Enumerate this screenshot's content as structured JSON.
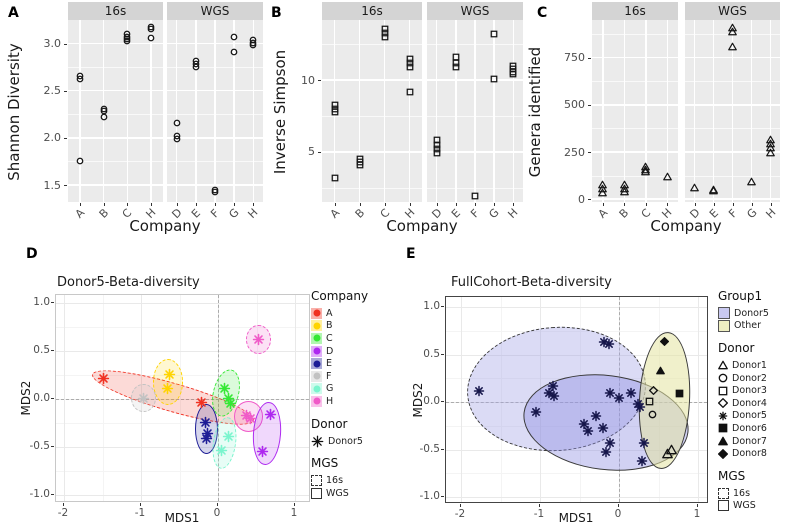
{
  "colors": {
    "company": {
      "A": "#F03122",
      "B": "#FFD400",
      "C": "#35E835",
      "D": "#AE29F0",
      "E": "#1D1D96",
      "F": "#C2C2C2",
      "G": "#7BF5CE",
      "H": "#F05BC8"
    },
    "donor5_point": "#16164B",
    "other_donor_point": "#111111",
    "group1": {
      "Donor5": "#C9C9F0",
      "Other": "#EFEFC2"
    },
    "facet_strip_bg": "#D4D4D4",
    "facet_panel_bg": "#EBEBEB",
    "e_ellipse_16s_fill": "rgba(160,160,230,0.38)",
    "e_ellipse_wgs_fill": "rgba(140,140,225,0.40)",
    "e_ellipse_other_fill": "rgba(228,228,160,0.55)"
  },
  "chart_data": [
    {
      "type": "scatter",
      "panel_label": "A",
      "ylabel": "Shannon Diversity",
      "xlabel": "Company",
      "marker": "circle-open",
      "yticks": [
        {
          "v": 1.5,
          "label": "1.5"
        },
        {
          "v": 2.0,
          "label": "2.0"
        },
        {
          "v": 2.5,
          "label": "2.5"
        },
        {
          "v": 3.0,
          "label": "3.0"
        }
      ],
      "ylim": [
        1.32,
        3.25
      ],
      "facets": [
        {
          "label": "16s",
          "categories": [
            "A",
            "B",
            "C",
            "H"
          ],
          "points": [
            [
              "A",
              2.66
            ],
            [
              "A",
              2.62
            ],
            [
              "A",
              1.76
            ],
            [
              "B",
              2.31
            ],
            [
              "B",
              2.28
            ],
            [
              "B",
              2.22
            ],
            [
              "C",
              3.1
            ],
            [
              "C",
              3.07
            ],
            [
              "C",
              3.05
            ],
            [
              "C",
              3.03
            ],
            [
              "H",
              3.18
            ],
            [
              "H",
              3.15
            ],
            [
              "H",
              3.06
            ]
          ]
        },
        {
          "label": "WGS",
          "categories": [
            "D",
            "E",
            "F",
            "G",
            "H"
          ],
          "points": [
            [
              "D",
              2.16
            ],
            [
              "D",
              2.02
            ],
            [
              "D",
              1.99
            ],
            [
              "E",
              2.81
            ],
            [
              "E",
              2.78
            ],
            [
              "E",
              2.75
            ],
            [
              "F",
              1.45
            ],
            [
              "F",
              1.43
            ],
            [
              "G",
              3.07
            ],
            [
              "G",
              2.91
            ],
            [
              "H",
              3.04
            ],
            [
              "H",
              3.01
            ],
            [
              "H",
              2.99
            ]
          ]
        }
      ]
    },
    {
      "type": "scatter",
      "panel_label": "B",
      "ylabel": "Inverse Simpson",
      "xlabel": "Company",
      "marker": "square-open",
      "yticks": [
        {
          "v": 5,
          "label": "5"
        },
        {
          "v": 10,
          "label": "10"
        }
      ],
      "ylim": [
        1.5,
        14.2
      ],
      "facets": [
        {
          "label": "16s",
          "categories": [
            "A",
            "B",
            "C",
            "H"
          ],
          "points": [
            [
              "A",
              8.3
            ],
            [
              "A",
              8.0
            ],
            [
              "A",
              7.8
            ],
            [
              "A",
              3.2
            ],
            [
              "B",
              4.5
            ],
            [
              "B",
              4.3
            ],
            [
              "B",
              4.1
            ],
            [
              "C",
              13.6
            ],
            [
              "C",
              13.3
            ],
            [
              "C",
              13.0
            ],
            [
              "H",
              11.5
            ],
            [
              "H",
              11.2
            ],
            [
              "H",
              10.9
            ],
            [
              "H",
              9.2
            ]
          ]
        },
        {
          "label": "WGS",
          "categories": [
            "D",
            "E",
            "F",
            "G",
            "H"
          ],
          "points": [
            [
              "D",
              5.8
            ],
            [
              "D",
              5.5
            ],
            [
              "D",
              5.2
            ],
            [
              "D",
              4.9
            ],
            [
              "E",
              11.6
            ],
            [
              "E",
              11.2
            ],
            [
              "E",
              10.9
            ],
            [
              "F",
              1.9
            ],
            [
              "G",
              13.2
            ],
            [
              "G",
              10.1
            ],
            [
              "H",
              11.0
            ],
            [
              "H",
              10.8
            ],
            [
              "H",
              10.55
            ],
            [
              "H",
              10.4
            ]
          ]
        }
      ]
    },
    {
      "type": "scatter",
      "panel_label": "C",
      "ylabel": "Genera identified",
      "xlabel": "Company",
      "marker": "triangle-open",
      "yticks": [
        {
          "v": 0,
          "label": "0"
        },
        {
          "v": 250,
          "label": "250"
        },
        {
          "v": 500,
          "label": "500"
        },
        {
          "v": 750,
          "label": "750"
        }
      ],
      "ylim": [
        -15,
        950
      ],
      "facets": [
        {
          "label": "16s",
          "categories": [
            "A",
            "B",
            "C",
            "H"
          ],
          "points": [
            [
              "A",
              80
            ],
            [
              "A",
              55
            ],
            [
              "A",
              35
            ],
            [
              "B",
              78
            ],
            [
              "B",
              55
            ],
            [
              "B",
              42
            ],
            [
              "C",
              175
            ],
            [
              "C",
              158
            ],
            [
              "C",
              147
            ],
            [
              "H",
              118
            ]
          ]
        },
        {
          "label": "WGS",
          "categories": [
            "D",
            "E",
            "F",
            "G",
            "H"
          ],
          "points": [
            [
              "D",
              60
            ],
            [
              "E",
              52
            ],
            [
              "E",
              45
            ],
            [
              "F",
              912
            ],
            [
              "F",
              888
            ],
            [
              "F",
              808
            ],
            [
              "G",
              95
            ],
            [
              "H",
              318
            ],
            [
              "H",
              295
            ],
            [
              "H",
              272
            ],
            [
              "H",
              250
            ]
          ]
        }
      ]
    },
    {
      "type": "scatter-mds",
      "panel_label": "D",
      "title": "Donor5-Beta-diversity",
      "xlabel": "MDS1",
      "ylabel": "MDS2",
      "xticks": [
        {
          "v": -2,
          "label": "-2"
        },
        {
          "v": -1,
          "label": "-1"
        },
        {
          "v": 0,
          "label": "0"
        },
        {
          "v": 1,
          "label": "1"
        }
      ],
      "yticks": [
        {
          "v": 1.0,
          "label": "1.0"
        },
        {
          "v": 0.5,
          "label": "0.5"
        },
        {
          "v": 0.0,
          "label": "0.0"
        },
        {
          "v": -0.5,
          "label": "-0.5"
        },
        {
          "v": -1.0,
          "label": "-1.0"
        }
      ],
      "points": [
        {
          "company": "A",
          "x": -1.49,
          "y": 0.21
        },
        {
          "company": "A",
          "x": -0.21,
          "y": -0.04
        },
        {
          "company": "F",
          "x": -0.97,
          "y": 0.01
        },
        {
          "company": "B",
          "x": -0.63,
          "y": 0.26
        },
        {
          "company": "B",
          "x": -0.66,
          "y": 0.11
        },
        {
          "company": "C",
          "x": 0.08,
          "y": 0.11
        },
        {
          "company": "C",
          "x": 0.14,
          "y": 0.01
        },
        {
          "company": "C",
          "x": 0.16,
          "y": -0.05
        },
        {
          "company": "H",
          "x": 0.53,
          "y": 0.62
        },
        {
          "company": "H",
          "x": 0.37,
          "y": -0.17
        },
        {
          "company": "H",
          "x": 0.42,
          "y": -0.2
        },
        {
          "company": "E",
          "x": -0.16,
          "y": -0.24
        },
        {
          "company": "E",
          "x": -0.13,
          "y": -0.36
        },
        {
          "company": "E",
          "x": -0.15,
          "y": -0.41
        },
        {
          "company": "G",
          "x": 0.13,
          "y": -0.39
        },
        {
          "company": "G",
          "x": 0.05,
          "y": -0.54
        },
        {
          "company": "D",
          "x": 0.68,
          "y": -0.16
        },
        {
          "company": "D",
          "x": 0.58,
          "y": -0.55
        }
      ],
      "ellipses": [
        {
          "company": "A",
          "cx": -0.58,
          "cy": 0.02,
          "rx": 1.09,
          "ry": 0.15,
          "rot": 16,
          "dashed": true
        },
        {
          "company": "B",
          "cx": -0.65,
          "cy": 0.18,
          "rx": 0.2,
          "ry": 0.24,
          "rot": 0,
          "dashed": true
        },
        {
          "company": "F",
          "cx": -0.97,
          "cy": 0.01,
          "rx": 0.16,
          "ry": 0.15,
          "rot": 0,
          "dashed": true
        },
        {
          "company": "C",
          "cx": 0.11,
          "cy": 0.06,
          "rx": 0.17,
          "ry": 0.25,
          "rot": 14,
          "dashed": true
        },
        {
          "company": "H",
          "cx": 0.53,
          "cy": 0.62,
          "rx": 0.16,
          "ry": 0.15,
          "rot": 0,
          "dashed": true
        },
        {
          "company": "H",
          "cx": 0.4,
          "cy": -0.18,
          "rx": 0.19,
          "ry": 0.16,
          "rot": 0,
          "dashed": false
        },
        {
          "company": "E",
          "cx": -0.15,
          "cy": -0.31,
          "rx": 0.15,
          "ry": 0.26,
          "rot": 0,
          "dashed": false
        },
        {
          "company": "G",
          "cx": 0.09,
          "cy": -0.46,
          "rx": 0.15,
          "ry": 0.27,
          "rot": 8,
          "dashed": true
        },
        {
          "company": "D",
          "cx": 0.63,
          "cy": -0.36,
          "rx": 0.18,
          "ry": 0.33,
          "rot": 4,
          "dashed": false
        }
      ],
      "legend": {
        "company": {
          "title": "Company",
          "items": [
            "A",
            "B",
            "C",
            "D",
            "E",
            "F",
            "G",
            "H"
          ]
        },
        "donor": {
          "title": "Donor",
          "items": [
            "Donor5"
          ]
        },
        "mgs": {
          "title": "MGS",
          "items": [
            "16s",
            "WGS"
          ]
        }
      }
    },
    {
      "type": "scatter-mds",
      "panel_label": "E",
      "title": "FullCohort-Beta-diversity",
      "xlabel": "MDS1",
      "ylabel": "MDS2",
      "xticks": [
        {
          "v": -2,
          "label": "-2"
        },
        {
          "v": -1,
          "label": "-1"
        },
        {
          "v": 0,
          "label": "0"
        },
        {
          "v": 1,
          "label": "1"
        }
      ],
      "yticks": [
        {
          "v": 1.0,
          "label": "1.0"
        },
        {
          "v": 0.5,
          "label": "0.5"
        },
        {
          "v": 0.0,
          "label": "0.0"
        },
        {
          "v": -0.5,
          "label": "-0.5"
        },
        {
          "v": -1.0,
          "label": "-1.0"
        }
      ],
      "donor5_points": [
        [
          -1.77,
          0.12
        ],
        [
          -1.05,
          -0.11
        ],
        [
          -0.84,
          0.17
        ],
        [
          -0.82,
          0.06
        ],
        [
          -0.88,
          0.1
        ],
        [
          -0.19,
          0.63
        ],
        [
          -0.13,
          0.61
        ],
        [
          -0.12,
          0.09
        ],
        [
          0.0,
          0.04
        ],
        [
          0.15,
          0.1
        ],
        [
          -0.29,
          -0.15
        ],
        [
          -0.44,
          -0.23
        ],
        [
          -0.39,
          -0.3
        ],
        [
          -0.2,
          -0.27
        ],
        [
          -0.12,
          -0.43
        ],
        [
          -0.16,
          -0.53
        ],
        [
          0.24,
          -0.02
        ],
        [
          0.27,
          -0.05
        ],
        [
          0.32,
          -0.43
        ],
        [
          0.29,
          -0.62
        ]
      ],
      "other_points": [
        {
          "donor": "Donor8",
          "marker": "diamond-filled",
          "x": 0.57,
          "y": 0.64
        },
        {
          "donor": "Donor7",
          "marker": "triangle-filled",
          "x": 0.52,
          "y": 0.33
        },
        {
          "donor": "Donor6",
          "marker": "square-filled",
          "x": 0.76,
          "y": 0.09
        },
        {
          "donor": "Donor4",
          "marker": "diamond-open",
          "x": 0.44,
          "y": 0.12
        },
        {
          "donor": "Donor3",
          "marker": "square-open",
          "x": 0.38,
          "y": 0.01
        },
        {
          "donor": "Donor2",
          "marker": "circle-open",
          "x": 0.43,
          "y": -0.13
        },
        {
          "donor": "Donor1",
          "marker": "triangle-open",
          "x": 0.62,
          "y": -0.54
        },
        {
          "donor": "Donor1",
          "marker": "triangle-open",
          "x": 0.66,
          "y": -0.5
        }
      ],
      "ellipses": [
        {
          "group": "Donor5",
          "mgs": "16s",
          "cx": -0.8,
          "cy": 0.14,
          "rx": 1.13,
          "ry": 0.65,
          "rot": -4,
          "dashed": true
        },
        {
          "group": "Donor5",
          "mgs": "WGS",
          "cx": -0.17,
          "cy": -0.22,
          "rx": 1.05,
          "ry": 0.5,
          "rot": 7,
          "dashed": false
        },
        {
          "group": "Other",
          "mgs": "WGS",
          "cx": 0.57,
          "cy": 0.02,
          "rx": 0.32,
          "ry": 0.72,
          "rot": 3,
          "dashed": false
        }
      ],
      "legend": {
        "group1": {
          "title": "Group1",
          "items": [
            "Donor5",
            "Other"
          ]
        },
        "donor": {
          "title": "Donor",
          "items": [
            {
              "label": "Donor1",
              "marker": "triangle-open"
            },
            {
              "label": "Donor2",
              "marker": "circle-open"
            },
            {
              "label": "Donor3",
              "marker": "square-open"
            },
            {
              "label": "Donor4",
              "marker": "diamond-open"
            },
            {
              "label": "Donor5",
              "marker": "asterisk"
            },
            {
              "label": "Donor6",
              "marker": "square-filled"
            },
            {
              "label": "Donor7",
              "marker": "triangle-filled"
            },
            {
              "label": "Donor8",
              "marker": "diamond-filled"
            }
          ]
        },
        "mgs": {
          "title": "MGS",
          "items": [
            "16s",
            "WGS"
          ]
        }
      }
    }
  ]
}
